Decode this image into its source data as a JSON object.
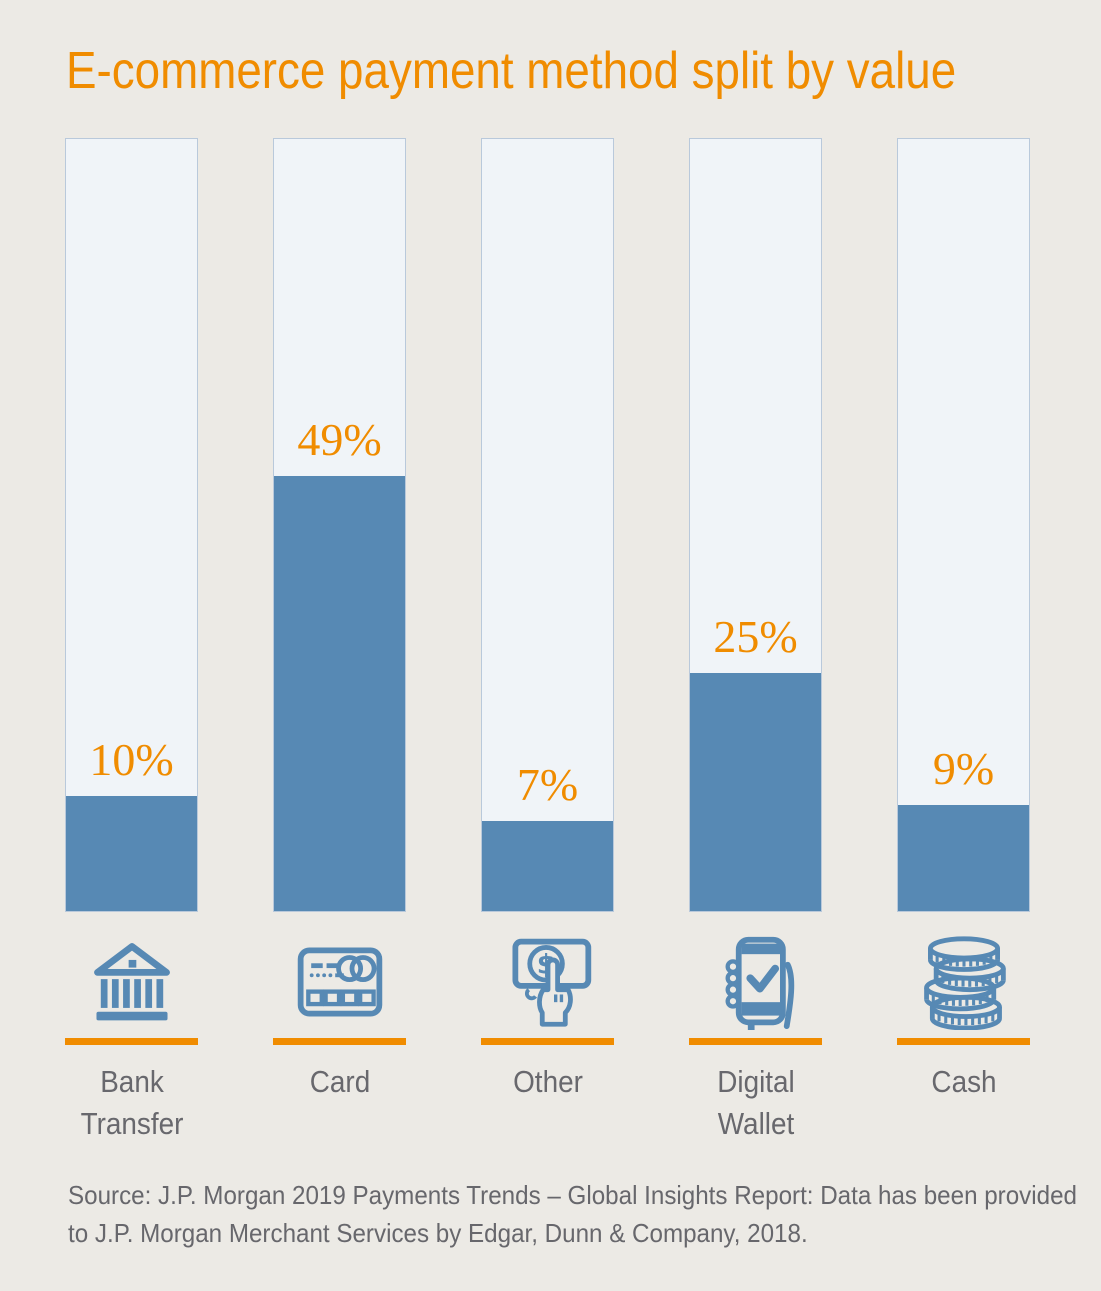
{
  "colors": {
    "background": "#ECEAE5",
    "accent_orange": "#F08C00",
    "bar_fill_blue": "#5789B4",
    "bar_track": "#F0F4F8",
    "bar_track_border": "#B9C9DB",
    "label_gray": "#68686D",
    "source_gray": "#67676C"
  },
  "title": {
    "text": "E-commerce payment method split by value"
  },
  "chart_data": {
    "type": "bar",
    "title": "E-commerce payment method split by value",
    "categories": [
      "Bank Transfer",
      "Card",
      "Other",
      "Digital Wallet",
      "Cash"
    ],
    "values": [
      10,
      49,
      7,
      25,
      9
    ],
    "value_labels": [
      "10%",
      "49%",
      "7%",
      "25%",
      "9%"
    ],
    "unit": "%",
    "xlabel": "",
    "ylabel": "",
    "ylim": [
      0,
      100
    ],
    "grid": false,
    "legend": "none",
    "orientation": "vertical",
    "bar_style": "filled portion inside full-height outlined track, percent label above fill"
  },
  "bars": [
    {
      "value_label": "10%",
      "label_line1": "Bank",
      "label_line2": "Transfer",
      "icon": "bank-icon"
    },
    {
      "value_label": "49%",
      "label_line1": "Card",
      "label_line2": "",
      "icon": "credit-card-icon"
    },
    {
      "value_label": "7%",
      "label_line1": "Other",
      "label_line2": "",
      "icon": "hand-payment-icon"
    },
    {
      "value_label": "25%",
      "label_line1": "Digital",
      "label_line2": "Wallet",
      "icon": "digital-wallet-icon"
    },
    {
      "value_label": "9%",
      "label_line1": "Cash",
      "label_line2": "",
      "icon": "coins-icon"
    }
  ],
  "source": {
    "line1": "Source: J.P. Morgan 2019 Payments Trends – Global Insights Report: Data has been provided",
    "line2": "to J.P. Morgan Merchant Services by Edgar, Dunn & Company, 2018."
  }
}
